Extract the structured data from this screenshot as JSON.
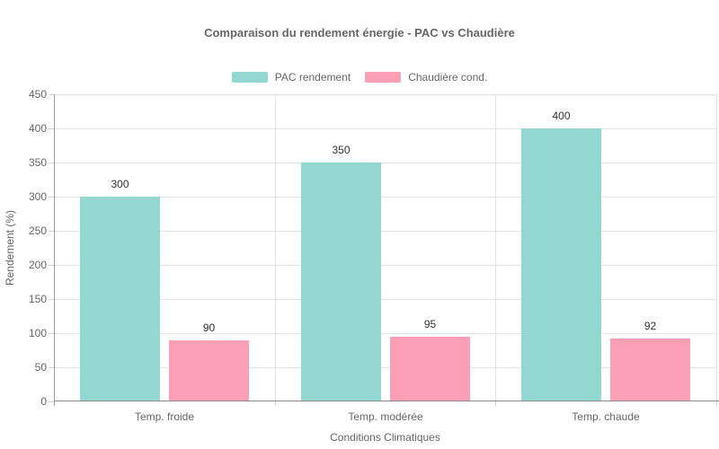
{
  "chart_data": {
    "type": "bar",
    "title": "Comparaison du rendement énergie - PAC vs Chaudière",
    "categories": [
      "Temp. froide",
      "Temp. modérée",
      "Temp. chaude"
    ],
    "series": [
      {
        "name": "PAC rendement",
        "color": "#92D8D0",
        "values": [
          300,
          350,
          400
        ]
      },
      {
        "name": "Chaudière cond.",
        "color": "#FA9FB5",
        "values": [
          90,
          95,
          92
        ]
      }
    ],
    "xlabel": "Conditions Climatiques",
    "ylabel": "Rendement (%)",
    "ylim": [
      0,
      450
    ],
    "ytick_step": 50,
    "yticks": [
      0,
      50,
      100,
      150,
      200,
      250,
      300,
      350,
      400,
      450
    ],
    "grid": true,
    "legend_position": "top",
    "value_labels_shown": true
  },
  "colors": {
    "background": "#ffffff",
    "title_text": "#666666",
    "axis_text": "#666666",
    "value_label_text": "#333333",
    "gridline": "#e3e3e3",
    "tick_mark": "#cfcfcf",
    "axis_line_y": "#9e9e9e",
    "axis_line_x": "#8c8c8c"
  }
}
